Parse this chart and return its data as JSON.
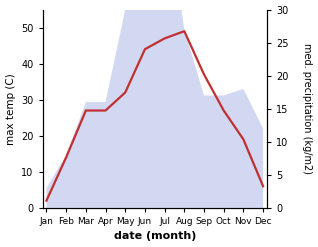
{
  "months": [
    "Jan",
    "Feb",
    "Mar",
    "Apr",
    "May",
    "Jun",
    "Jul",
    "Aug",
    "Sep",
    "Oct",
    "Nov",
    "Dec"
  ],
  "temp": [
    2,
    14,
    27,
    27,
    32,
    44,
    47,
    49,
    37,
    27,
    19,
    6
  ],
  "precip": [
    3,
    8,
    16,
    16,
    30,
    55,
    47,
    27,
    17,
    17,
    18,
    12
  ],
  "temp_ylim": [
    0,
    55
  ],
  "precip_ylim": [
    0,
    30
  ],
  "temp_yticks": [
    0,
    10,
    20,
    30,
    40,
    50
  ],
  "precip_yticks": [
    0,
    5,
    10,
    15,
    20,
    25,
    30
  ],
  "fill_color": "#b0b8e8",
  "fill_alpha": 0.55,
  "line_color": "#c03030",
  "line_width": 1.6,
  "ylabel_left": "max temp (C)",
  "ylabel_right": "med. precipitation (kg/m2)",
  "xlabel": "date (month)"
}
